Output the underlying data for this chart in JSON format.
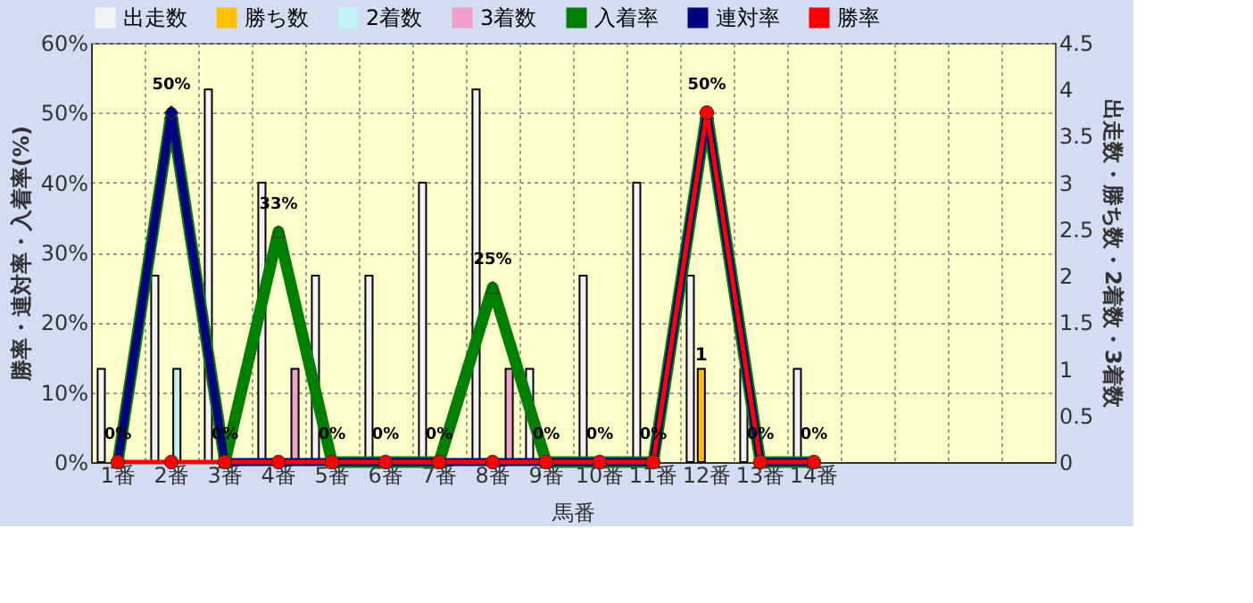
{
  "chart_data": {
    "type": "bar",
    "xlabel": "馬番",
    "ylabel": "勝率・連対率・入着率(%)",
    "y2label": "出走数・勝ち数・2着数・3着数",
    "categories": [
      "1番",
      "2番",
      "3番",
      "4番",
      "5番",
      "6番",
      "7番",
      "8番",
      "9番",
      "10番",
      "11番",
      "12番",
      "13番",
      "14番",
      null,
      null,
      null,
      null
    ],
    "series": [
      {
        "name": "出走数",
        "type": "bar",
        "axis": "y2",
        "color": "#f4f4f4",
        "values": [
          1,
          2,
          4,
          3,
          2,
          2,
          3,
          4,
          1,
          2,
          3,
          2,
          1,
          1,
          null,
          null,
          null,
          null
        ]
      },
      {
        "name": "勝ち数",
        "type": "bar",
        "axis": "y2",
        "color": "#ffc000",
        "values": [
          0,
          0,
          0,
          0,
          0,
          0,
          0,
          0,
          0,
          0,
          0,
          1,
          0,
          0,
          null,
          null,
          null,
          null
        ],
        "value_labels": [
          null,
          null,
          null,
          null,
          null,
          null,
          null,
          null,
          null,
          null,
          null,
          "1",
          null,
          null,
          null,
          null,
          null,
          null
        ]
      },
      {
        "name": "2着数",
        "type": "bar",
        "axis": "y2",
        "color": "#c0f4f4",
        "values": [
          0,
          1,
          0,
          0,
          0,
          0,
          0,
          0,
          0,
          0,
          0,
          0,
          0,
          0,
          null,
          null,
          null,
          null
        ]
      },
      {
        "name": "3着数",
        "type": "bar",
        "axis": "y2",
        "color": "#f0a0c8",
        "values": [
          0,
          0,
          0,
          1,
          0,
          0,
          0,
          1,
          0,
          0,
          0,
          0,
          0,
          0,
          null,
          null,
          null,
          null
        ]
      },
      {
        "name": "入着率",
        "type": "line",
        "marker": "triangle",
        "color": "#008000",
        "values": [
          0,
          50,
          0,
          33,
          0,
          0,
          0,
          25,
          0,
          0,
          0,
          50,
          0,
          0,
          null,
          null,
          null,
          null
        ],
        "value_labels": [
          "0%",
          "50%",
          "0%",
          "33%",
          "0%",
          "0%",
          "0%",
          "25%",
          "0%",
          "0%",
          "0%",
          "50%",
          "0%",
          "0%",
          null,
          null,
          null,
          null
        ]
      },
      {
        "name": "連対率",
        "type": "line",
        "marker": "diamond",
        "color": "#000080",
        "values": [
          0,
          50,
          0,
          0,
          0,
          0,
          0,
          0,
          0,
          0,
          0,
          50,
          0,
          0,
          null,
          null,
          null,
          null
        ]
      },
      {
        "name": "勝率",
        "type": "line",
        "marker": "circle",
        "color": "#ff0000",
        "values": [
          0,
          0,
          0,
          0,
          0,
          0,
          0,
          0,
          0,
          0,
          0,
          50,
          0,
          0,
          null,
          null,
          null,
          null
        ]
      }
    ],
    "ylim": [
      0,
      60
    ],
    "yticks": [
      {
        "value": 0,
        "label": "0%"
      },
      {
        "value": 10,
        "label": "10%"
      },
      {
        "value": 20,
        "label": "20%"
      },
      {
        "value": 30,
        "label": "30%"
      },
      {
        "value": 40,
        "label": "40%"
      },
      {
        "value": 50,
        "label": "50%"
      },
      {
        "value": 60,
        "label": "60%"
      }
    ],
    "y2lim": [
      0,
      4.5
    ],
    "y2ticks": [
      0,
      0.5,
      1,
      1.5,
      2,
      2.5,
      3,
      3.5,
      4,
      4.5
    ],
    "grid": true,
    "legend": "top",
    "line_style": "solid"
  }
}
